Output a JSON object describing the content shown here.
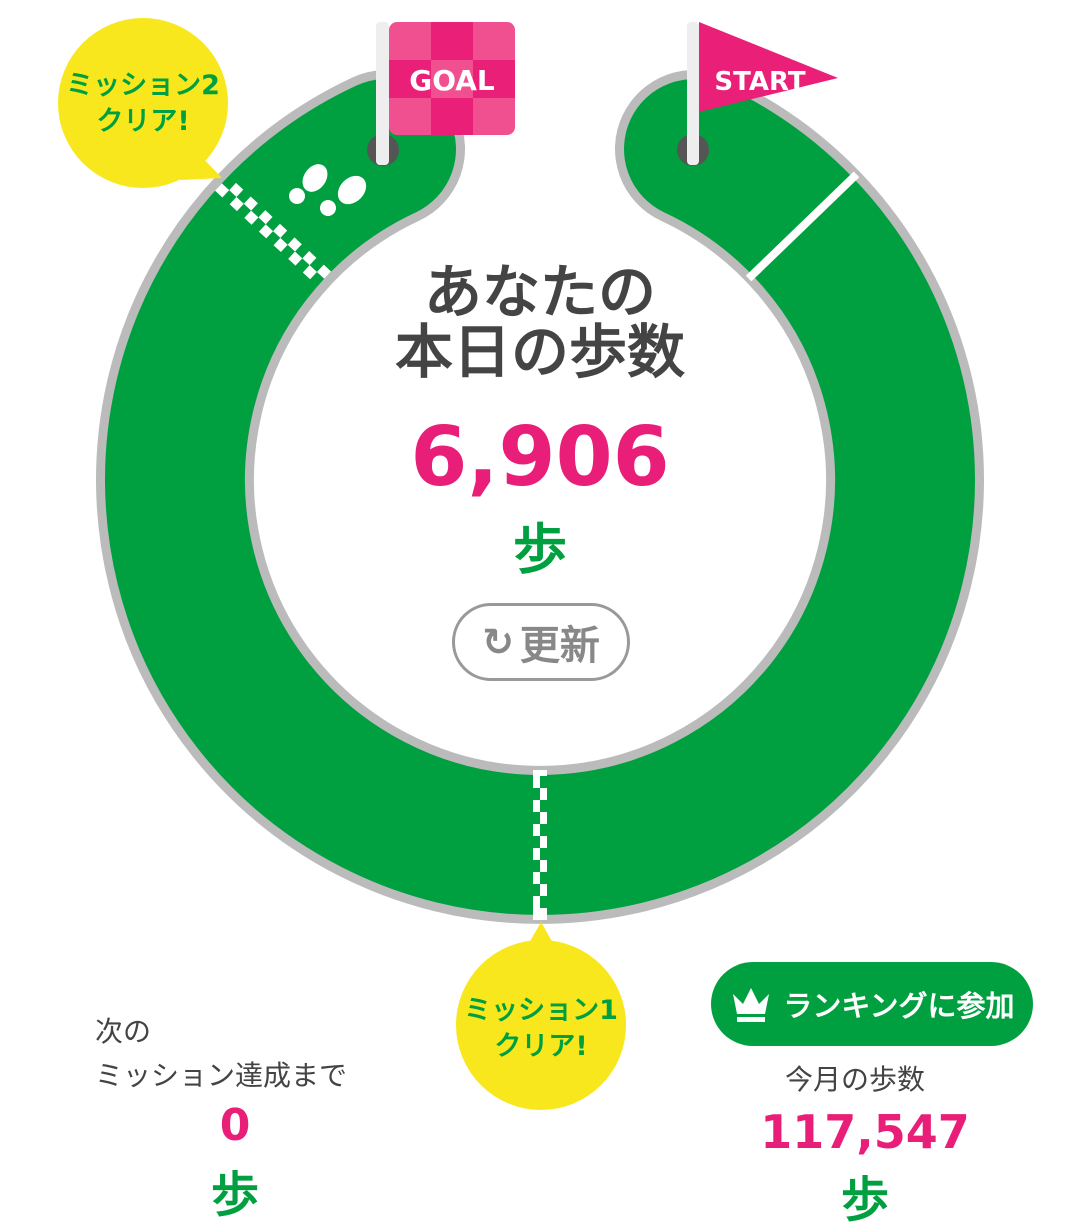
{
  "colors": {
    "track": "#00a040",
    "track_border": "#bbbbbb",
    "accent": "#e91e78",
    "bubble": "#f8e71c",
    "text": "#444444"
  },
  "flags": {
    "goal": "GOAL",
    "start": "START"
  },
  "bubbles": {
    "mission2": {
      "line1": "ミッション2",
      "line2": "クリア!"
    },
    "mission1": {
      "line1": "ミッション1",
      "line2": "クリア!"
    }
  },
  "today": {
    "line1": "あなたの",
    "line2": "本日の歩数",
    "steps": "6,906",
    "unit": "歩"
  },
  "refresh": {
    "icon": "refresh-icon",
    "label": "更新"
  },
  "next_mission": {
    "line1": "次の",
    "line2": "ミッション達成まで",
    "steps": "0",
    "unit": "歩"
  },
  "ranking": {
    "icon": "crown-icon",
    "label": "ランキングに参加"
  },
  "monthly": {
    "label": "今月の歩数",
    "steps": "117,547",
    "unit": "歩"
  }
}
